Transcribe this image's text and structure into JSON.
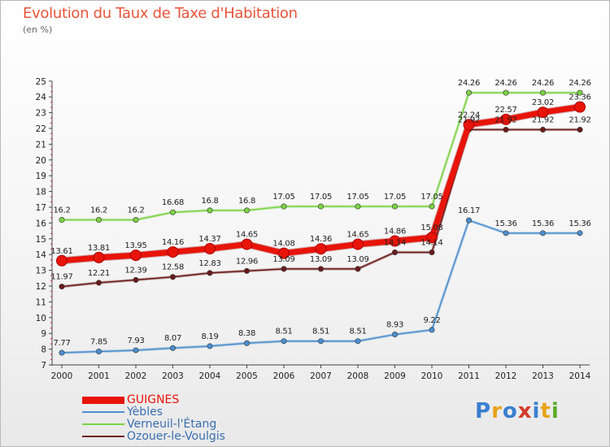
{
  "chart_data": {
    "type": "line",
    "title": "Evolution du Taux de Taxe d'Habitation",
    "ylabel": "(en %)",
    "xlabel": "",
    "ylim": [
      7,
      25
    ],
    "yticks": [
      7,
      8,
      9,
      10,
      11,
      12,
      13,
      14,
      15,
      16,
      17,
      18,
      19,
      20,
      21,
      22,
      23,
      24,
      25
    ],
    "x": [
      "2000",
      "2001",
      "2002",
      "2003",
      "2004",
      "2005",
      "2006",
      "2007",
      "2008",
      "2009",
      "2010",
      "2011",
      "2012",
      "2013",
      "2014"
    ],
    "grid": false,
    "series": [
      {
        "name": "GUIGNES",
        "color": "#e8140a",
        "values": [
          13.61,
          13.81,
          13.95,
          14.16,
          14.37,
          14.65,
          14.08,
          14.36,
          14.65,
          14.86,
          15.08,
          22.24,
          22.57,
          23.02,
          23.36
        ],
        "labels": [
          "13.61",
          "13.81",
          "13.95",
          "14.16",
          "14.37",
          "14.65",
          "14.08",
          "14.36",
          "14.65",
          "14.86",
          "15.08",
          "22.24",
          "22.57",
          "23.02",
          "23.36"
        ]
      },
      {
        "name": "Yèbles",
        "color": "#4c8fce",
        "values": [
          7.77,
          7.85,
          7.93,
          8.07,
          8.19,
          8.38,
          8.51,
          8.51,
          8.51,
          8.93,
          9.22,
          16.17,
          15.36,
          15.36,
          15.36
        ],
        "labels": [
          "7.77",
          "7.85",
          "7.93",
          "8.07",
          "8.19",
          "8.38",
          "8.51",
          "8.51",
          "8.51",
          "8.93",
          "9.22",
          "16.17",
          "15.36",
          "15.36",
          "15.36"
        ]
      },
      {
        "name": "Verneuil-l'Étang",
        "color": "#7cd345",
        "values": [
          16.2,
          16.2,
          16.2,
          16.68,
          16.8,
          16.8,
          17.05,
          17.05,
          17.05,
          17.05,
          17.05,
          24.26,
          24.26,
          24.26,
          24.26
        ],
        "labels": [
          "16.2",
          "16.2",
          "16.2",
          "16.68",
          "16.8",
          "16.8",
          "17.05",
          "17.05",
          "17.05",
          "17.05",
          "17.05",
          "24.26",
          "24.26",
          "24.26",
          "24.26"
        ]
      },
      {
        "name": "Ozouer-le-Voulgis",
        "color": "#6b1a1a",
        "values": [
          11.97,
          12.21,
          12.39,
          12.58,
          12.83,
          12.96,
          13.09,
          13.09,
          13.09,
          14.14,
          14.14,
          21.92,
          21.92,
          21.92,
          21.92
        ],
        "labels": [
          "11.97",
          "12.21",
          "12.39",
          "12.58",
          "12.83",
          "12.96",
          "13.09",
          "13.09",
          "13.09",
          "14.14",
          "14.14",
          "21.92",
          "21.92",
          "21.92",
          "21.92"
        ]
      }
    ]
  },
  "logo": {
    "letters": [
      "P",
      "r",
      "o",
      "x",
      "i",
      "t",
      "i"
    ],
    "colors": [
      "#3a7fd0",
      "#e8a317",
      "#3a7fd0",
      "#d43a2a",
      "#3a7fd0",
      "#e8a317",
      "#5aab2a"
    ]
  }
}
